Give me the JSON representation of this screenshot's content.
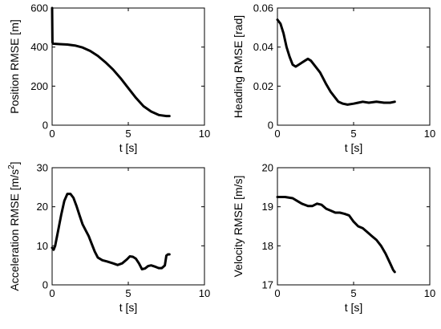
{
  "chart_data": [
    {
      "type": "line",
      "xlabel": "t [s]",
      "ylabel": "Position RMSE [m]",
      "xlim": [
        0,
        10
      ],
      "ylim": [
        0,
        600
      ],
      "xticks": [
        0,
        5,
        10
      ],
      "yticks": [
        0,
        200,
        400,
        600
      ],
      "grid": false,
      "series": [
        {
          "x": [
            0,
            0.02,
            0.05,
            0.1,
            0.5,
            1.0,
            1.5,
            2.0,
            2.5,
            3.0,
            3.5,
            4.0,
            4.5,
            5.0,
            5.5,
            6.0,
            6.5,
            7.0,
            7.5,
            7.7
          ],
          "y": [
            600,
            425,
            418,
            417,
            415,
            413,
            408,
            398,
            380,
            355,
            322,
            285,
            240,
            190,
            140,
            97,
            70,
            52,
            47,
            47
          ]
        }
      ]
    },
    {
      "type": "line",
      "xlabel": "t [s]",
      "ylabel": "Heading RMSE [rad]",
      "xlim": [
        0,
        10
      ],
      "ylim": [
        0,
        0.06
      ],
      "xticks": [
        0,
        5,
        10
      ],
      "yticks": [
        0,
        0.02,
        0.04,
        0.06
      ],
      "ytick_labels": [
        "0",
        "0.02",
        "0.04",
        "0.06"
      ],
      "grid": false,
      "series": [
        {
          "x": [
            0,
            0.2,
            0.4,
            0.6,
            0.8,
            1.0,
            1.2,
            1.4,
            1.6,
            1.8,
            2.0,
            2.2,
            2.4,
            2.6,
            2.8,
            3.0,
            3.2,
            3.5,
            3.8,
            4.0,
            4.3,
            4.6,
            5.0,
            5.3,
            5.6,
            6.0,
            6.5,
            7.0,
            7.4,
            7.7
          ],
          "y": [
            0.054,
            0.052,
            0.047,
            0.04,
            0.035,
            0.031,
            0.03,
            0.031,
            0.032,
            0.033,
            0.034,
            0.033,
            0.031,
            0.029,
            0.027,
            0.024,
            0.021,
            0.017,
            0.014,
            0.012,
            0.011,
            0.0105,
            0.011,
            0.0115,
            0.012,
            0.0115,
            0.012,
            0.0115,
            0.0115,
            0.012
          ]
        }
      ]
    },
    {
      "type": "line",
      "xlabel": "t [s]",
      "ylabel": "Acceleration RMSE [m/s",
      "ylabel_superscript": "2",
      "ylabel_suffix": "]",
      "xlim": [
        0,
        10
      ],
      "ylim": [
        0,
        30
      ],
      "xticks": [
        0,
        5,
        10
      ],
      "yticks": [
        0,
        10,
        20,
        30
      ],
      "grid": false,
      "series": [
        {
          "x": [
            0,
            0.1,
            0.2,
            0.4,
            0.6,
            0.8,
            1.0,
            1.2,
            1.4,
            1.6,
            1.8,
            2.0,
            2.2,
            2.4,
            2.6,
            2.8,
            3.0,
            3.3,
            3.6,
            4.0,
            4.3,
            4.6,
            4.9,
            5.1,
            5.3,
            5.5,
            5.7,
            5.9,
            6.1,
            6.3,
            6.5,
            6.8,
            7.0,
            7.2,
            7.4,
            7.5,
            7.6,
            7.7
          ],
          "y": [
            9.5,
            9,
            10,
            14,
            18,
            21.5,
            23.3,
            23.3,
            22.3,
            20.2,
            17.8,
            15.5,
            14,
            12.5,
            10.5,
            8.5,
            7,
            6.3,
            6,
            5.5,
            5.1,
            5.5,
            6.5,
            7.3,
            7.2,
            6.7,
            5.5,
            4,
            4.2,
            4.8,
            5,
            4.6,
            4.3,
            4.3,
            5,
            7.5,
            7.8,
            7.8
          ]
        }
      ]
    },
    {
      "type": "line",
      "xlabel": "t [s]",
      "ylabel": "Velocity RMSE [m/s]",
      "xlim": [
        0,
        10
      ],
      "ylim": [
        17,
        20
      ],
      "xticks": [
        0,
        5,
        10
      ],
      "yticks": [
        17,
        18,
        19,
        20
      ],
      "grid": false,
      "series": [
        {
          "x": [
            0,
            0.5,
            1.0,
            1.3,
            1.6,
            2.0,
            2.3,
            2.6,
            2.9,
            3.2,
            3.5,
            3.8,
            4.1,
            4.4,
            4.7,
            5.0,
            5.3,
            5.6,
            5.9,
            6.2,
            6.5,
            6.8,
            7.1,
            7.4,
            7.6,
            7.7
          ],
          "y": [
            19.25,
            19.25,
            19.22,
            19.15,
            19.08,
            19.02,
            19.02,
            19.08,
            19.05,
            18.95,
            18.9,
            18.85,
            18.85,
            18.82,
            18.78,
            18.62,
            18.5,
            18.45,
            18.35,
            18.25,
            18.15,
            18.0,
            17.8,
            17.55,
            17.38,
            17.33
          ]
        }
      ]
    }
  ]
}
